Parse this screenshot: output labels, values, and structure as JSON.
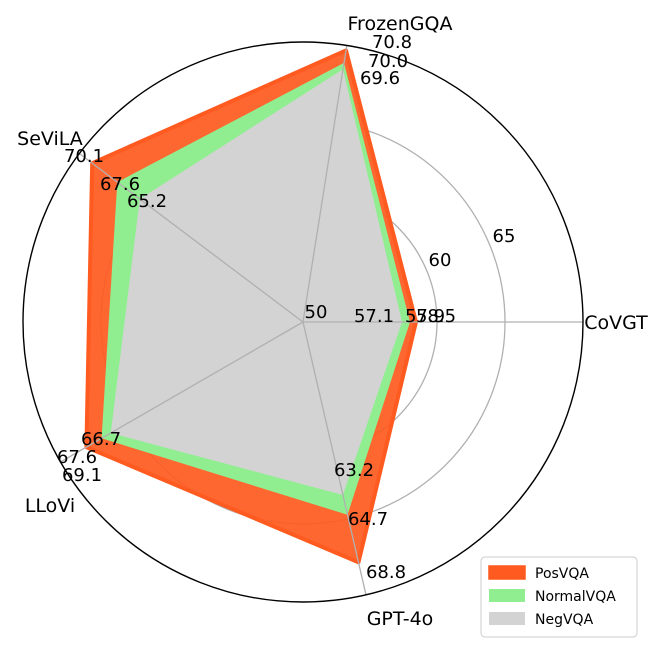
{
  "chart_data": {
    "type": "radar",
    "axes": [
      "FrozenGQA",
      "CoVGT",
      "GPT-4o",
      "LLoVi",
      "SeViLA"
    ],
    "r_ticks": [
      "50",
      "60",
      "65"
    ],
    "series": [
      {
        "name": "PosVQA",
        "color": "#ff5a1f",
        "values": [
          70.8,
          58.5,
          68.8,
          69.1,
          70.1
        ]
      },
      {
        "name": "NormalVQA",
        "color": "#90ee90",
        "values": [
          70.0,
          57.9,
          64.7,
          67.6,
          67.6
        ]
      },
      {
        "name": "NegVQA",
        "color": "#d3d3d3",
        "values": [
          69.6,
          57.1,
          63.2,
          66.7,
          65.2
        ]
      }
    ],
    "value_labels": [
      [
        "70.8",
        "58.5",
        "68.8",
        "69.1",
        "70.1"
      ],
      [
        "70.0",
        "57.9",
        "64.7",
        "67.6",
        "67.6"
      ],
      [
        "69.6",
        "57.1",
        "63.2",
        "66.7",
        "65.2"
      ]
    ],
    "legend_position": "lower-right",
    "grid": true
  }
}
